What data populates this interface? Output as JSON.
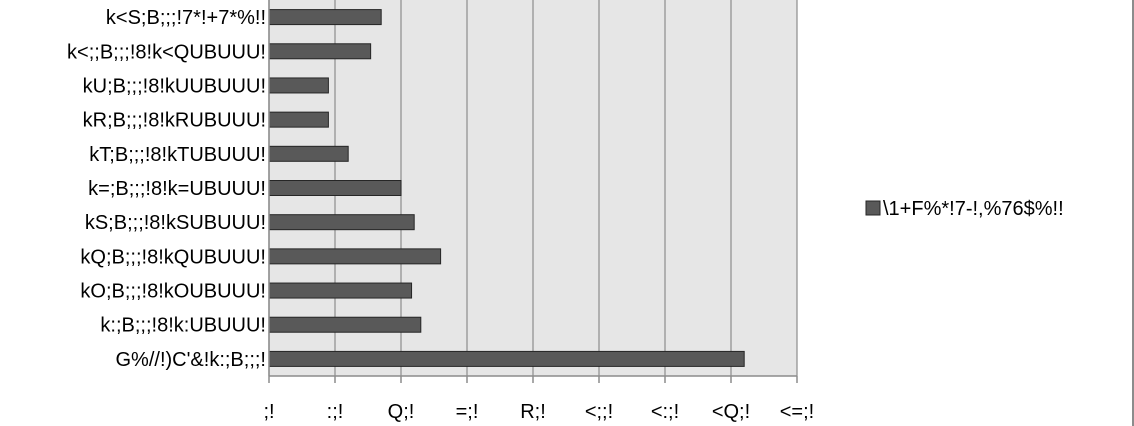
{
  "chart_data": {
    "type": "bar",
    "orientation": "horizontal",
    "categories": [
      "k<S;B;;;!7*!+7*%!!",
      "k<;;B;;;!8!k<QUBUUU!",
      "kU;B;;;!8!kUUBUUU!",
      "kR;B;;;!8!kRUBUUU!",
      "kT;B;;;!8!kTUBUUU!",
      "k=;B;;;!8!k=UBUUU!",
      "kS;B;;;!8!kSUBUUU!",
      "kQ;B;;;!8!kQUBUUU!",
      "kO;B;;;!8!kOUBUUU!",
      "k:;B;;;!8!k:UBUUU!",
      "G%//!)C'&!k:;B;;;!"
    ],
    "series": [
      {
        "name": "\\1+F%*!7-!,%76$%!!",
        "values": [
          8.5,
          7.7,
          4.5,
          4.5,
          6.0,
          10.0,
          11.0,
          13.0,
          10.8,
          11.5,
          36.0
        ]
      }
    ],
    "xlim": [
      0,
      40
    ],
    "tick_values": [
      0,
      5,
      10,
      15,
      20,
      25,
      30,
      35,
      40
    ],
    "tick_labels": [
      ";!",
      ":;!",
      "Q;!",
      "=;!",
      "R;!",
      "<;;!",
      "<:;!",
      "<Q;!",
      "<=;!"
    ],
    "grid": true,
    "legend_position": "right",
    "colors": {
      "bar": "#595959",
      "bar_edge": "#262626",
      "plot_bg": "#e6e6e6",
      "grid": "#8c8c8c",
      "axis": "#8c8c8c"
    }
  }
}
